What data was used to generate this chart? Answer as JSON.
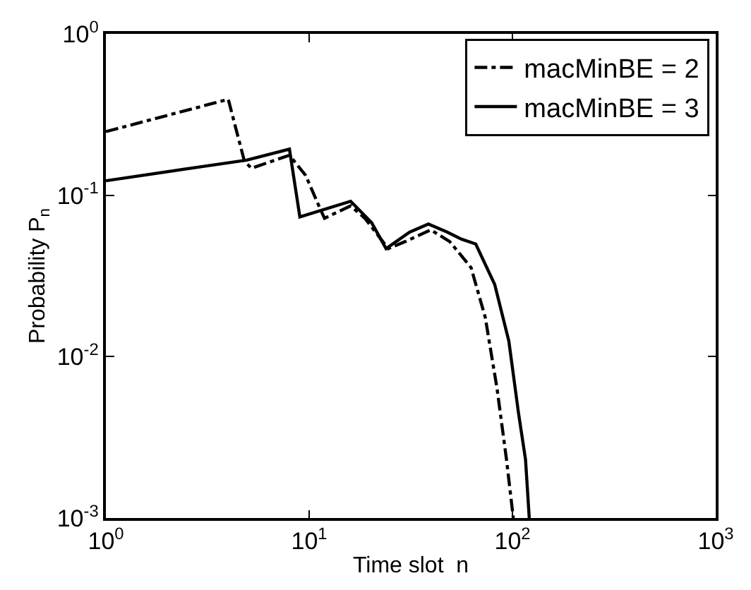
{
  "chart_data": {
    "type": "line",
    "xlabel": "Time slot  n",
    "ylabel": "Probability P$_{n}$",
    "log": "xy",
    "legend": "top right",
    "marker": "none",
    "xlim": [
      1,
      1000
    ],
    "ylim": [
      0.001,
      1
    ],
    "xticks": [
      {
        "value": 1,
        "label": "10$^{0}$"
      },
      {
        "value": 10,
        "label": "10$^{1}$"
      },
      {
        "value": 100,
        "label": "10$^{2}$"
      },
      {
        "value": 1000,
        "label": "10$^{3}$"
      }
    ],
    "yticks": [
      {
        "value": 0.001,
        "label": "10$^{-3}$"
      },
      {
        "value": 0.01,
        "label": "10$^{-2}$"
      },
      {
        "value": 0.1,
        "label": "10$^{-1}$"
      },
      {
        "value": 1,
        "label": "10$^{0}$"
      }
    ],
    "series": [
      {
        "name": "macMinBE = 2",
        "color": "#000000",
        "line_style": "dashdot",
        "x": [
          1,
          4,
          4.8,
          5.2,
          8,
          9.6,
          11.3,
          11.9,
          16,
          18.8,
          24.5,
          29.6,
          39.7,
          49.2,
          62.6,
          73.5,
          84,
          93.5,
          101
        ],
        "values": [
          0.248,
          0.393,
          0.163,
          0.147,
          0.177,
          0.133,
          0.083,
          0.072,
          0.086,
          0.072,
          0.0467,
          0.0516,
          0.061,
          0.0516,
          0.0356,
          0.0175,
          0.00634,
          0.0023,
          0.001
        ]
      },
      {
        "name": "macMinBE = 3",
        "color": "#000000",
        "line_style": "solid",
        "x": [
          1,
          3.13,
          4.93,
          8,
          9,
          16,
          20.3,
          23.9,
          31.2,
          38.6,
          47.9,
          56.2,
          66,
          81.8,
          96,
          107,
          116,
          121
        ],
        "values": [
          0.123,
          0.152,
          0.165,
          0.193,
          0.0734,
          0.0918,
          0.0676,
          0.0467,
          0.0591,
          0.0663,
          0.059,
          0.0534,
          0.0499,
          0.028,
          0.0125,
          0.00452,
          0.0023,
          0.001
        ]
      }
    ]
  }
}
